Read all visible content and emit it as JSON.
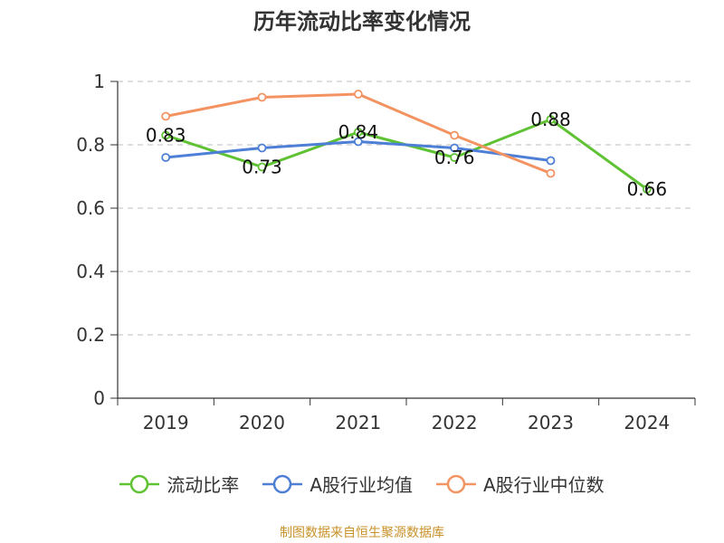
{
  "chart_data": {
    "type": "line",
    "title": "历年流动比率变化情况",
    "categories": [
      "2019",
      "2020",
      "2021",
      "2022",
      "2023",
      "2024"
    ],
    "ylim": [
      0,
      1
    ],
    "yticks": [
      "0",
      "0.2",
      "0.4",
      "0.6",
      "0.8",
      "1"
    ],
    "grid": true,
    "legend_position": "bottom",
    "series": [
      {
        "name": "流动比率",
        "color": "#5ec232",
        "values": [
          0.83,
          0.73,
          0.84,
          0.76,
          0.88,
          0.66
        ],
        "labels": [
          "0.83",
          "0.73",
          "0.84",
          "0.76",
          "0.88",
          "0.66"
        ]
      },
      {
        "name": "A股行业均值",
        "color": "#4e7fd6",
        "values": [
          0.76,
          0.79,
          0.81,
          0.79,
          0.75,
          null
        ]
      },
      {
        "name": "A股行业中位数",
        "color": "#f49362",
        "values": [
          0.89,
          0.95,
          0.96,
          0.83,
          0.71,
          null
        ]
      }
    ]
  },
  "footer": {
    "source": "制图数据来自恒生聚源数据库"
  }
}
